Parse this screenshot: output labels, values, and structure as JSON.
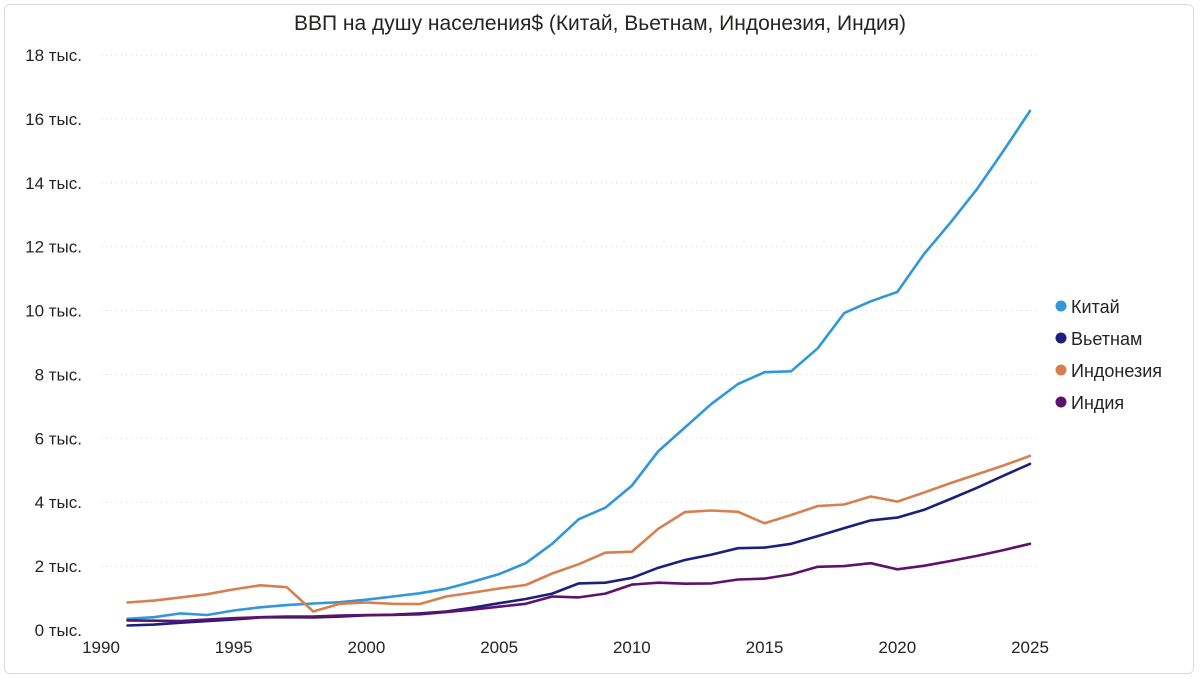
{
  "chart_data": {
    "type": "line",
    "title": "ВВП на душу населения$ (Китай, Вьетнам, Индонезия, Индия)",
    "xlabel": "",
    "ylabel": "",
    "xlim": [
      1990,
      2025
    ],
    "ylim": [
      0,
      18000
    ],
    "grid": true,
    "legend_position": "right",
    "x_ticks": [
      {
        "value": 1990,
        "label": "1990"
      },
      {
        "value": 1995,
        "label": "1995"
      },
      {
        "value": 2000,
        "label": "2000"
      },
      {
        "value": 2005,
        "label": "2005"
      },
      {
        "value": 2010,
        "label": "2010"
      },
      {
        "value": 2015,
        "label": "2015"
      },
      {
        "value": 2020,
        "label": "2020"
      },
      {
        "value": 2025,
        "label": "2025"
      }
    ],
    "y_ticks": [
      {
        "value": 0,
        "label": "0 тыс."
      },
      {
        "value": 2000,
        "label": "2 тыс."
      },
      {
        "value": 4000,
        "label": "4 тыс."
      },
      {
        "value": 6000,
        "label": "6 тыс."
      },
      {
        "value": 8000,
        "label": "8 тыс."
      },
      {
        "value": 10000,
        "label": "10 тыс."
      },
      {
        "value": 12000,
        "label": "12 тыс."
      },
      {
        "value": 14000,
        "label": "14 тыс."
      },
      {
        "value": 16000,
        "label": "16 тыс."
      },
      {
        "value": 18000,
        "label": "18 тыс."
      }
    ],
    "x": [
      1991,
      1992,
      1993,
      1994,
      1995,
      1996,
      1997,
      1998,
      1999,
      2000,
      2001,
      2002,
      2003,
      2004,
      2005,
      2006,
      2007,
      2008,
      2009,
      2010,
      2011,
      2012,
      2013,
      2014,
      2015,
      2016,
      2017,
      2018,
      2019,
      2020,
      2021,
      2022,
      2023,
      2024,
      2025
    ],
    "series": [
      {
        "name": "Китай",
        "color": "#2f97da",
        "values": [
          350,
          400,
          520,
          470,
          610,
          710,
          780,
          830,
          870,
          950,
          1050,
          1150,
          1290,
          1510,
          1750,
          2090,
          2700,
          3470,
          3830,
          4520,
          5600,
          6340,
          7080,
          7700,
          8070,
          8100,
          8820,
          9920,
          10290,
          10580,
          11760,
          12750,
          13800,
          15000,
          16250
        ]
      },
      {
        "name": "Вьетнам",
        "color": "#1c1f7c",
        "values": [
          140,
          170,
          230,
          280,
          330,
          390,
          400,
          390,
          420,
          460,
          480,
          520,
          580,
          700,
          840,
          970,
          1140,
          1460,
          1480,
          1630,
          1950,
          2190,
          2360,
          2560,
          2580,
          2700,
          2940,
          3190,
          3430,
          3520,
          3760,
          4100,
          4450,
          4830,
          5200
        ]
      },
      {
        "name": "Индонезия",
        "color": "#d6804f",
        "values": [
          860,
          920,
          1020,
          1120,
          1270,
          1400,
          1340,
          580,
          820,
          860,
          820,
          810,
          1050,
          1170,
          1300,
          1410,
          1770,
          2060,
          2420,
          2450,
          3170,
          3690,
          3740,
          3700,
          3340,
          3600,
          3880,
          3930,
          4180,
          4020,
          4300,
          4600,
          4870,
          5150,
          5450
        ]
      },
      {
        "name": "Индия",
        "color": "#5e126d",
        "values": [
          300,
          290,
          280,
          330,
          370,
          400,
          420,
          420,
          450,
          470,
          470,
          490,
          560,
          640,
          730,
          820,
          1050,
          1020,
          1140,
          1420,
          1480,
          1450,
          1460,
          1580,
          1610,
          1740,
          1980,
          2000,
          2090,
          1900,
          2010,
          2160,
          2320,
          2500,
          2700
        ]
      }
    ]
  }
}
